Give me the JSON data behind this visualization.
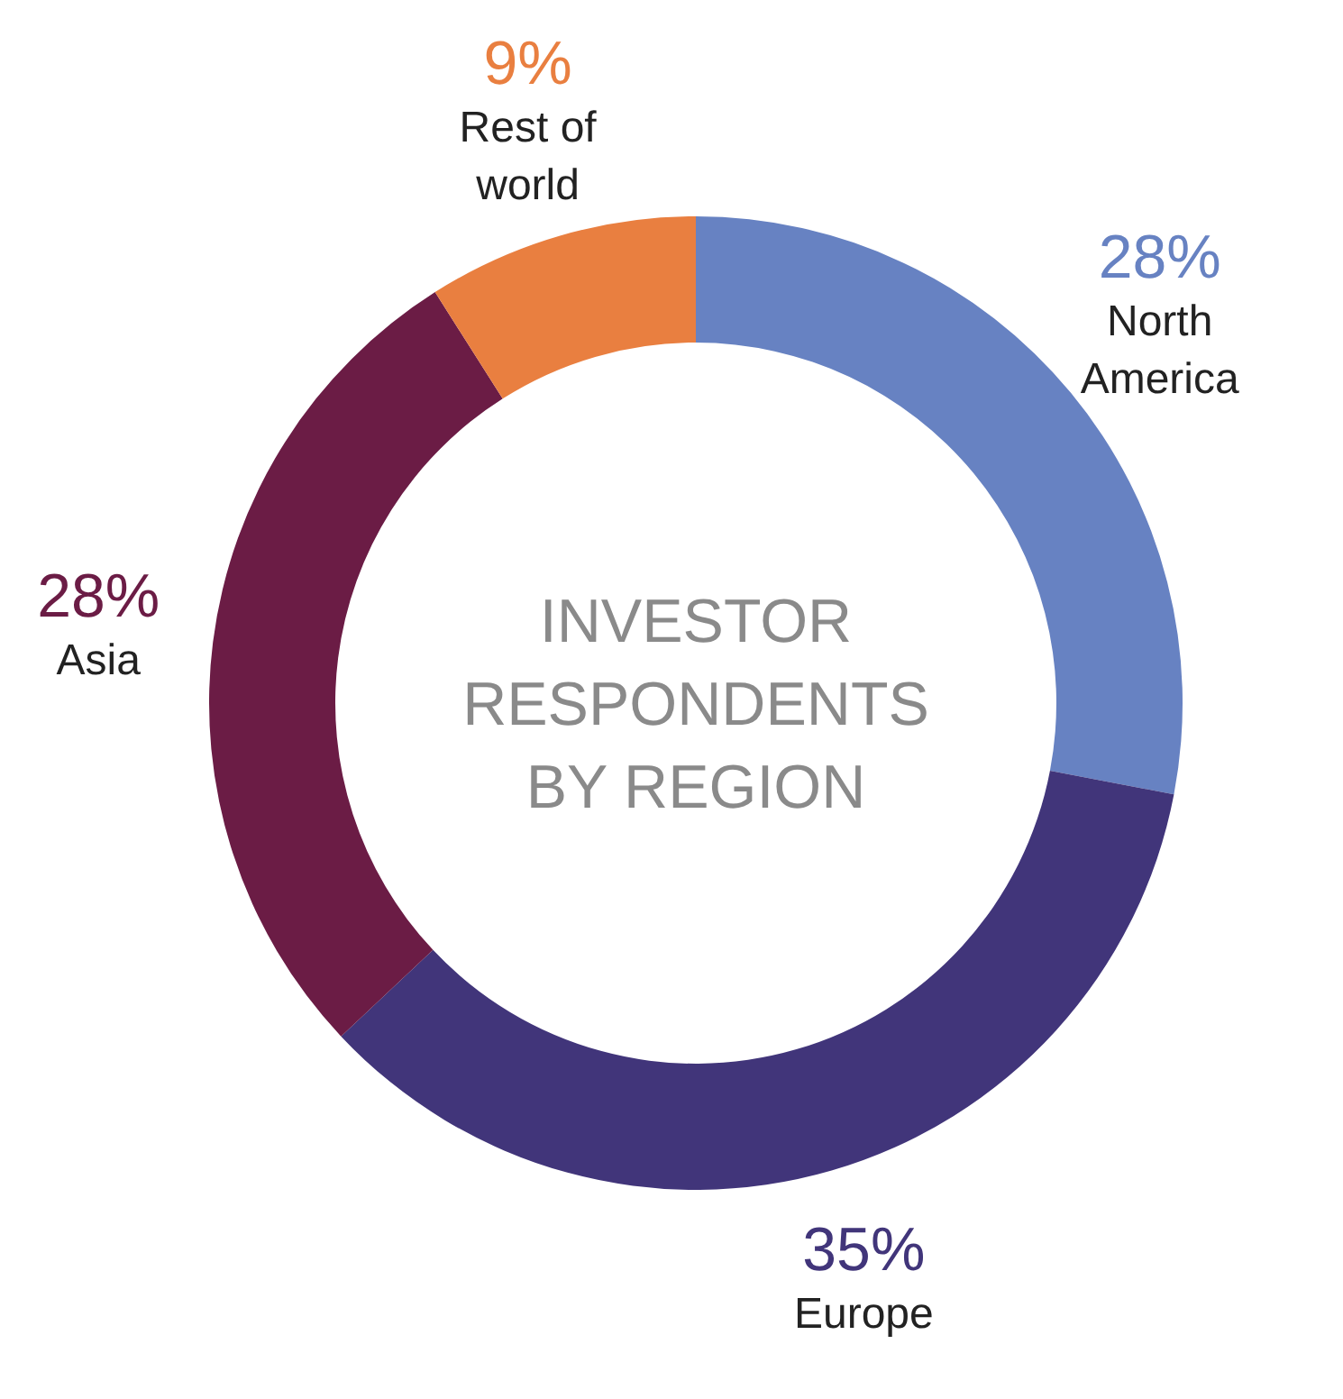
{
  "chart_data": {
    "type": "donut",
    "title": "INVESTOR RESPONDENTS BY REGION",
    "categories": [
      "North America",
      "Europe",
      "Asia",
      "Rest of world"
    ],
    "values": [
      28,
      35,
      28,
      9
    ],
    "colors": [
      "#6782c2",
      "#41357a",
      "#6b1c45",
      "#e97f40"
    ],
    "value_labels": [
      "28%",
      "35%",
      "28%",
      "9%"
    ]
  }
}
